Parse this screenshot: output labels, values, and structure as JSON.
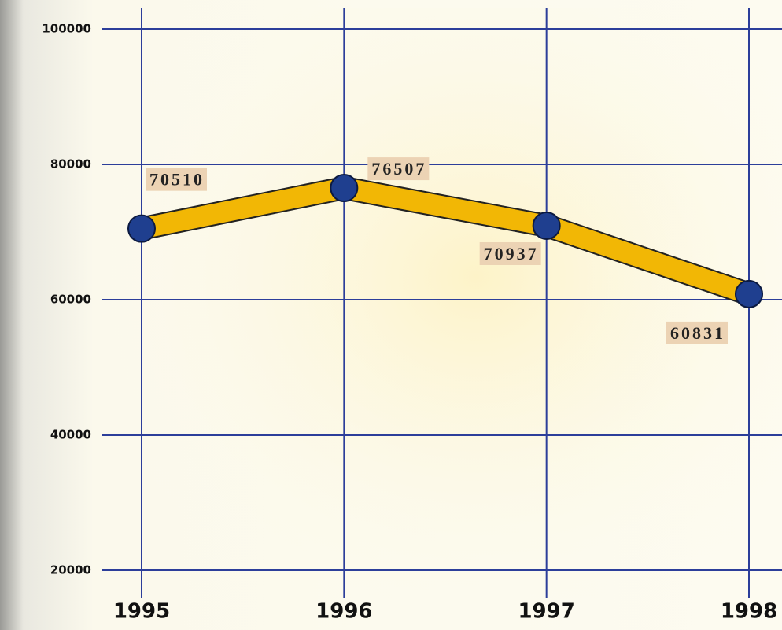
{
  "chart_data": {
    "type": "line",
    "categories": [
      "1995",
      "1996",
      "1997",
      "1998"
    ],
    "values": [
      70510,
      76507,
      70937,
      60831
    ],
    "color": "#f2b705",
    "marker_color": "#1f3f8f",
    "grid_color": "#2c3e9a",
    "ylim": [
      20000,
      100000
    ],
    "yticks": [
      20000,
      40000,
      60000,
      80000,
      100000
    ],
    "grid": true
  }
}
